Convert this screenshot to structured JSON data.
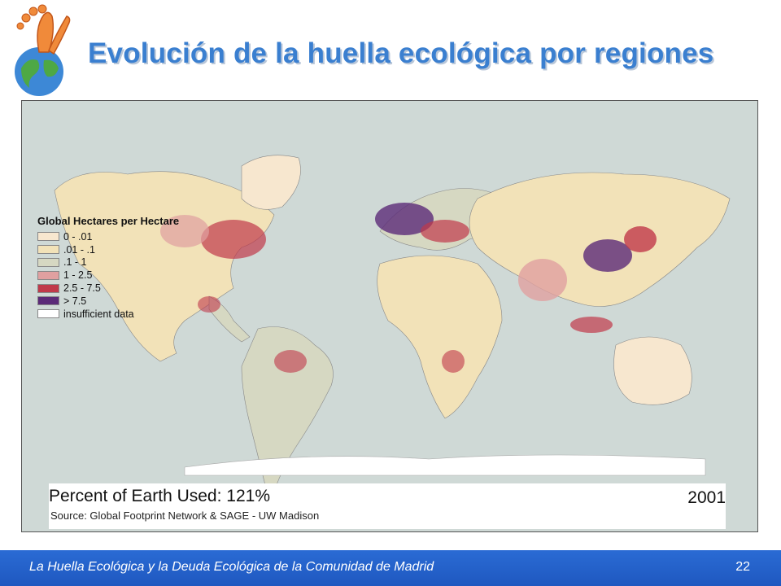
{
  "slide": {
    "title": "Evolución de la huella ecológica por regiones",
    "footer_text": "La Huella Ecológica y la Deuda Ecológica de la Comunidad de Madrid",
    "page_number": "22"
  },
  "map": {
    "legend_title": "Global Hectares per Hectare",
    "legend": [
      {
        "label": "0 - .01",
        "color": "#f7e7cf"
      },
      {
        "label": ".01 - .1",
        "color": "#f2e2b8"
      },
      {
        "label": ".1 - 1",
        "color": "#d6d8c2"
      },
      {
        "label": "1 - 2.5",
        "color": "#e0a0a0"
      },
      {
        "label": "2.5 - 7.5",
        "color": "#c0394a"
      },
      {
        "label": "> 7.5",
        "color": "#5b2a78"
      },
      {
        "label": "insufficient data",
        "color": "#ffffff"
      }
    ],
    "percent_label": "Percent of Earth Used: 121%",
    "source": "Source: Global Footprint Network & SAGE - UW Madison",
    "year": "2001"
  }
}
